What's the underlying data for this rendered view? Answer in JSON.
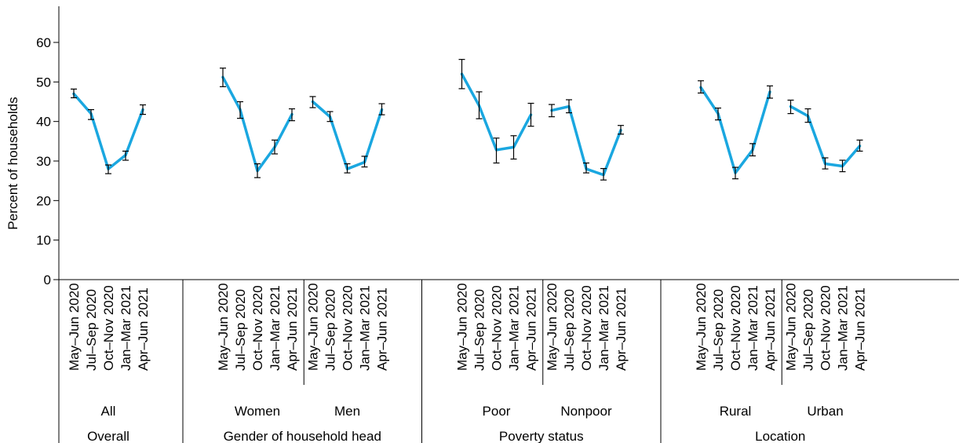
{
  "chart_data": {
    "type": "line",
    "title": "",
    "xlabel": "",
    "ylabel": "Percent of households",
    "ylim": [
      0,
      60
    ],
    "yticks": [
      0,
      10,
      20,
      30,
      40,
      50,
      60
    ],
    "grid": false,
    "line_color": "#1aa7e0",
    "error_bar_color": "#000000",
    "periods": [
      "May–Jun 2020",
      "Jul–Sep 2020",
      "Oct–Nov 2020",
      "Jan–Mar 2021",
      "Apr–Jun 2021"
    ],
    "groups": [
      {
        "name": "Overall",
        "subgroups": [
          {
            "name": "All",
            "values": [
              47,
              42,
              28,
              31.5,
              43
            ],
            "lower": [
              46,
              40.5,
              26.8,
              30.2,
              41.8
            ],
            "upper": [
              48.2,
              43,
              29,
              32.5,
              44.2
            ]
          }
        ]
      },
      {
        "name": "Gender of household head",
        "subgroups": [
          {
            "name": "Women",
            "values": [
              51.2,
              43,
              27.5,
              33.5,
              41.8
            ],
            "lower": [
              48.8,
              40.8,
              25.8,
              31.8,
              40.2
            ],
            "upper": [
              53.5,
              45,
              29.3,
              35.3,
              43.2
            ]
          },
          {
            "name": "Men",
            "values": [
              45,
              41.2,
              28,
              29.7,
              43
            ],
            "lower": [
              43.5,
              40,
              27,
              28.5,
              41.7
            ],
            "upper": [
              46.3,
              42.5,
              29.3,
              31.2,
              44.5
            ]
          }
        ]
      },
      {
        "name": "Poverty status",
        "subgroups": [
          {
            "name": "Poor",
            "values": [
              52,
              44,
              32.8,
              33.5,
              41.7
            ],
            "lower": [
              48.3,
              40.7,
              29.5,
              30.5,
              38.8
            ],
            "upper": [
              55.7,
              47.5,
              35.8,
              36.4,
              44.6
            ]
          },
          {
            "name": "Nonpoor",
            "values": [
              42.8,
              43.8,
              28,
              26.5,
              37.8
            ],
            "lower": [
              41.2,
              42.2,
              27,
              25.2,
              36.8
            ],
            "upper": [
              44.3,
              45.5,
              29.5,
              28.1,
              39
            ]
          }
        ]
      },
      {
        "name": "Location",
        "subgroups": [
          {
            "name": "Rural",
            "values": [
              48.6,
              42,
              27,
              32.8,
              47.5
            ],
            "lower": [
              47.2,
              40.4,
              25.5,
              31.3,
              45.9
            ],
            "upper": [
              50.3,
              43.4,
              28.4,
              34.4,
              49
            ]
          },
          {
            "name": "Urban",
            "values": [
              43.8,
              41.4,
              29.3,
              28.7,
              33.8
            ],
            "lower": [
              42,
              39.8,
              28,
              27.3,
              32.5
            ],
            "upper": [
              45.4,
              43.2,
              30.8,
              30.2,
              35.3
            ]
          }
        ]
      }
    ]
  }
}
